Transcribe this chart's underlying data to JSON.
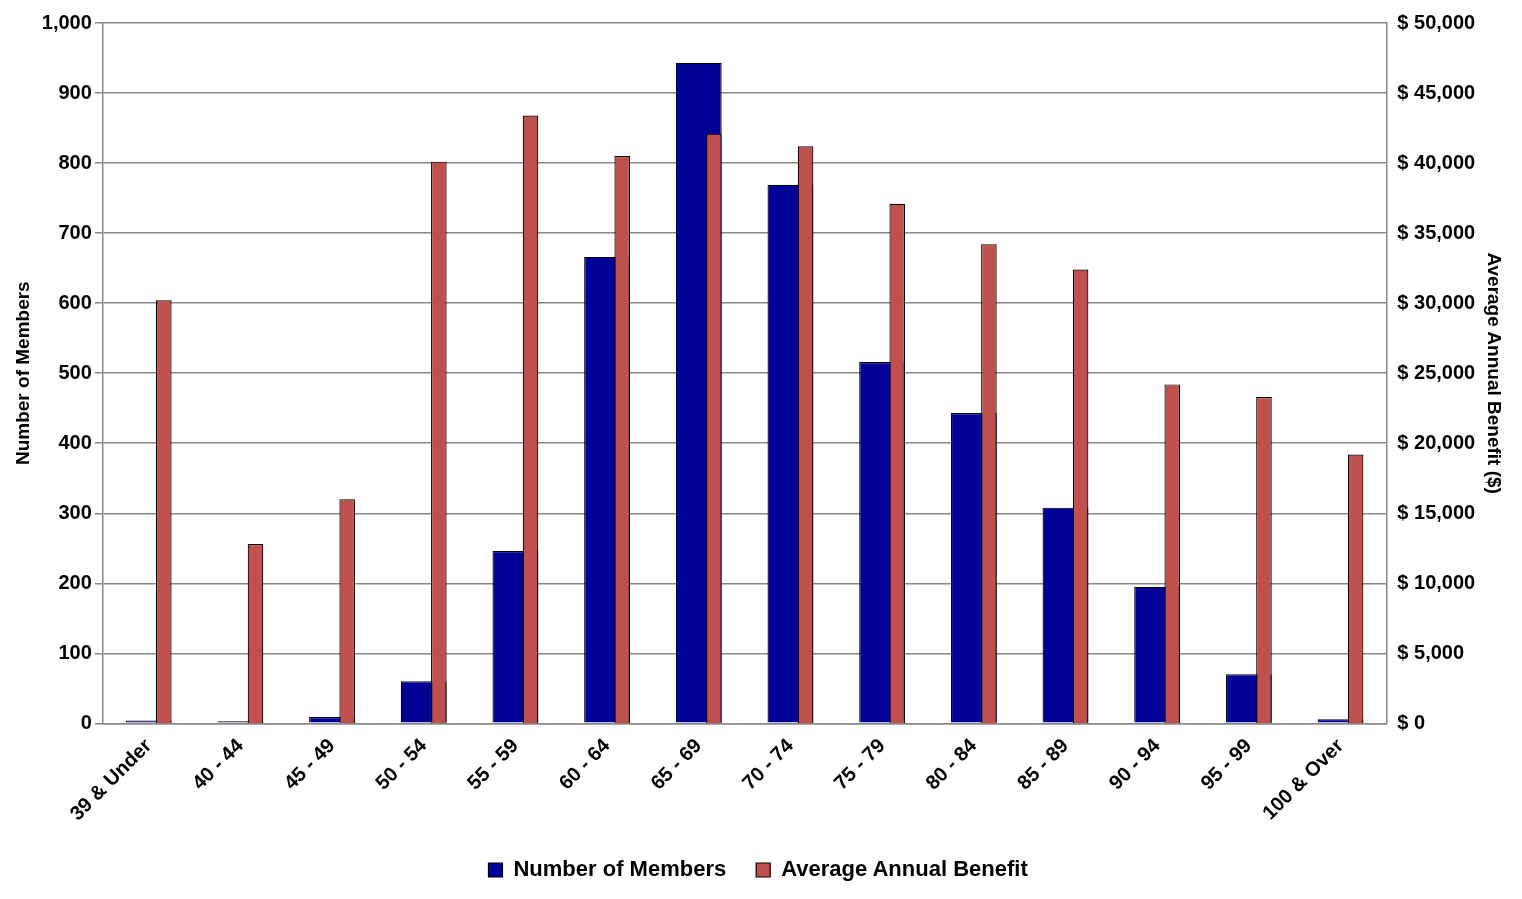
{
  "chart_data": {
    "type": "bar",
    "categories": [
      "39 & Under",
      "40 - 44",
      "45 - 49",
      "50 - 54",
      "55 - 59",
      "60 - 64",
      "65 - 69",
      "70 - 74",
      "75 - 79",
      "80 - 84",
      "85 - 89",
      "90 - 94",
      "95 - 99",
      "100 & Over"
    ],
    "series": [
      {
        "name": "Number of Members",
        "color": "#000099",
        "values": [
          4,
          3,
          9,
          60,
          246,
          666,
          943,
          769,
          516,
          443,
          308,
          195,
          70,
          6
        ]
      },
      {
        "name": "Average Annual Benefit",
        "color": "#c0504d",
        "axis": "y2",
        "values": [
          30200,
          12800,
          16000,
          40100,
          43400,
          40500,
          42100,
          41200,
          37100,
          34200,
          32400,
          24200,
          23300,
          19200
        ]
      }
    ],
    "ylabel": "Number of Members",
    "y2label": "Average Annual Benefit ($)",
    "ylim": [
      0,
      1000
    ],
    "yticks": [
      0,
      100,
      200,
      300,
      400,
      500,
      600,
      700,
      800,
      900,
      {
        "value": 1000,
        "label": "1,000"
      }
    ],
    "y2lim": [
      0,
      50000
    ],
    "y2ticks": [
      {
        "value": 0,
        "label": "$ 0"
      },
      {
        "value": 5000,
        "label": "$ 5,000"
      },
      {
        "value": 10000,
        "label": "$ 10,000"
      },
      {
        "value": 15000,
        "label": "$ 15,000"
      },
      {
        "value": 20000,
        "label": "$ 20,000"
      },
      {
        "value": 25000,
        "label": "$ 25,000"
      },
      {
        "value": 30000,
        "label": "$ 30,000"
      },
      {
        "value": 35000,
        "label": "$ 35,000"
      },
      {
        "value": 40000,
        "label": "$ 40,000"
      },
      {
        "value": 45000,
        "label": "$ 45,000"
      },
      {
        "value": 50000,
        "label": "$ 50,000"
      }
    ],
    "grid": "y",
    "legend": "bottom"
  }
}
